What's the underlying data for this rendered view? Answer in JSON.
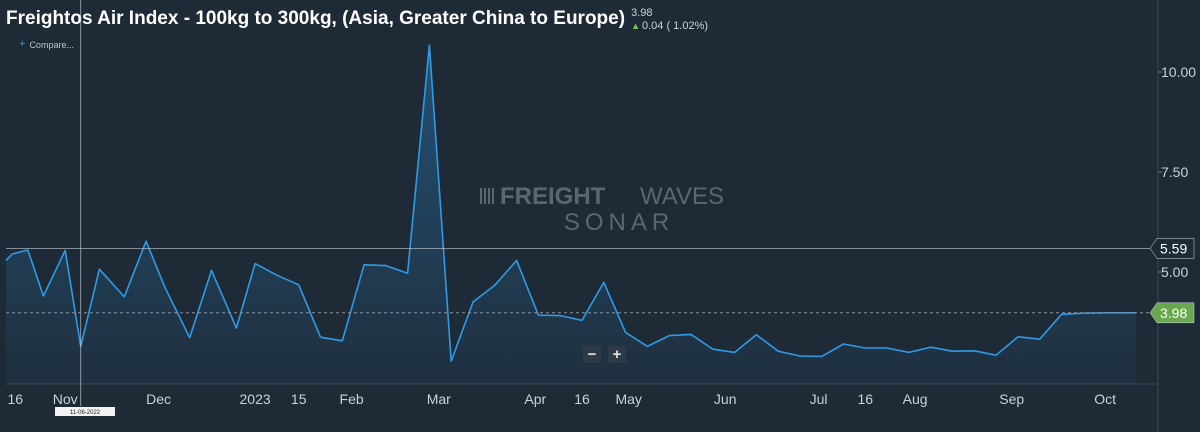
{
  "header": {
    "title": "Freightos Air Index - 100kg to 300kg, (Asia, Greater China to Europe)",
    "last_value": "3.98",
    "change_text": "0.04 ( 1.02%)",
    "change_icon": "triangle-up-icon",
    "compare_label": "Compare...",
    "compare_icon": "plus-icon"
  },
  "watermark": {
    "line1_bold": "FREIGHT",
    "line1_light": "WAVES",
    "line2": "SONAR"
  },
  "zoom": {
    "minus_label": "−",
    "plus_label": "+"
  },
  "crosshair": {
    "date_label": "11-06-2022"
  },
  "colors": {
    "background": "#1e2a36",
    "line": "#2f9ae6",
    "up": "#7ac943",
    "price_badge": "#6aa84f"
  },
  "chart_data": {
    "type": "area",
    "title": "Freightos Air Index - 100kg to 300kg, (Asia, Greater China to Europe)",
    "xlabel": "",
    "ylabel": "",
    "ylim": [
      2.2,
      11.8
    ],
    "yticks": [
      "10.00",
      "7.50",
      "5.00"
    ],
    "ytick_values": [
      10,
      7.5,
      5
    ],
    "xticks": [
      {
        "label": "16",
        "date": "2022-10-16"
      },
      {
        "label": "Nov",
        "date": "2022-11-01"
      },
      {
        "label": "Dec",
        "date": "2022-12-01"
      },
      {
        "label": "2023",
        "date": "2023-01-01"
      },
      {
        "label": "15",
        "date": "2023-01-15"
      },
      {
        "label": "Feb",
        "date": "2023-02-01"
      },
      {
        "label": "Mar",
        "date": "2023-03-01"
      },
      {
        "label": "Apr",
        "date": "2023-04-01"
      },
      {
        "label": "16",
        "date": "2023-04-16"
      },
      {
        "label": "May",
        "date": "2023-05-01"
      },
      {
        "label": "Jun",
        "date": "2023-06-01"
      },
      {
        "label": "Jul",
        "date": "2023-07-01"
      },
      {
        "label": "16",
        "date": "2023-07-16"
      },
      {
        "label": "Aug",
        "date": "2023-08-01"
      },
      {
        "label": "Sep",
        "date": "2023-09-01"
      },
      {
        "label": "Oct",
        "date": "2023-10-01"
      }
    ],
    "crosshair_value": 5.59,
    "crosshair_label": "5.59",
    "last_label": "3.98",
    "last_value": 3.98,
    "grid": false,
    "series": [
      {
        "x": [
          "2022-10-13",
          "2022-10-15",
          "2022-10-20",
          "2022-10-25",
          "2022-11-01",
          "2022-11-06",
          "2022-11-12",
          "2022-11-20",
          "2022-11-27",
          "2022-12-03",
          "2022-12-11",
          "2022-12-18",
          "2022-12-26",
          "2023-01-01",
          "2023-01-08",
          "2023-01-15",
          "2023-01-22",
          "2023-01-29",
          "2023-02-05",
          "2023-02-12",
          "2023-02-19",
          "2023-02-26",
          "2023-03-05",
          "2023-03-12",
          "2023-03-19",
          "2023-03-26",
          "2023-04-02",
          "2023-04-09",
          "2023-04-16",
          "2023-04-23",
          "2023-04-30",
          "2023-05-07",
          "2023-05-14",
          "2023-05-21",
          "2023-05-28",
          "2023-06-04",
          "2023-06-11",
          "2023-06-18",
          "2023-06-25",
          "2023-07-02",
          "2023-07-09",
          "2023-07-16",
          "2023-07-23",
          "2023-07-30",
          "2023-08-06",
          "2023-08-13",
          "2023-08-20",
          "2023-08-27",
          "2023-09-03",
          "2023-09-10",
          "2023-09-17",
          "2023-09-24",
          "2023-10-01",
          "2023-10-07",
          "2023-10-11"
        ],
        "y": [
          5.29,
          5.45,
          5.55,
          4.4,
          5.54,
          3.14,
          5.07,
          4.38,
          5.77,
          4.62,
          3.36,
          5.04,
          3.6,
          5.21,
          4.92,
          4.68,
          3.37,
          3.28,
          5.18,
          5.16,
          4.97,
          10.67,
          2.77,
          4.25,
          4.67,
          5.29,
          3.92,
          3.91,
          3.79,
          4.74,
          3.49,
          3.14,
          3.41,
          3.44,
          3.07,
          2.99,
          3.43,
          3.02,
          2.9,
          2.89,
          3.2,
          3.1,
          3.1,
          2.99,
          3.12,
          3.02,
          3.03,
          2.92,
          3.38,
          3.32,
          3.94,
          3.97,
          3.98,
          3.98,
          3.98
        ]
      }
    ]
  }
}
